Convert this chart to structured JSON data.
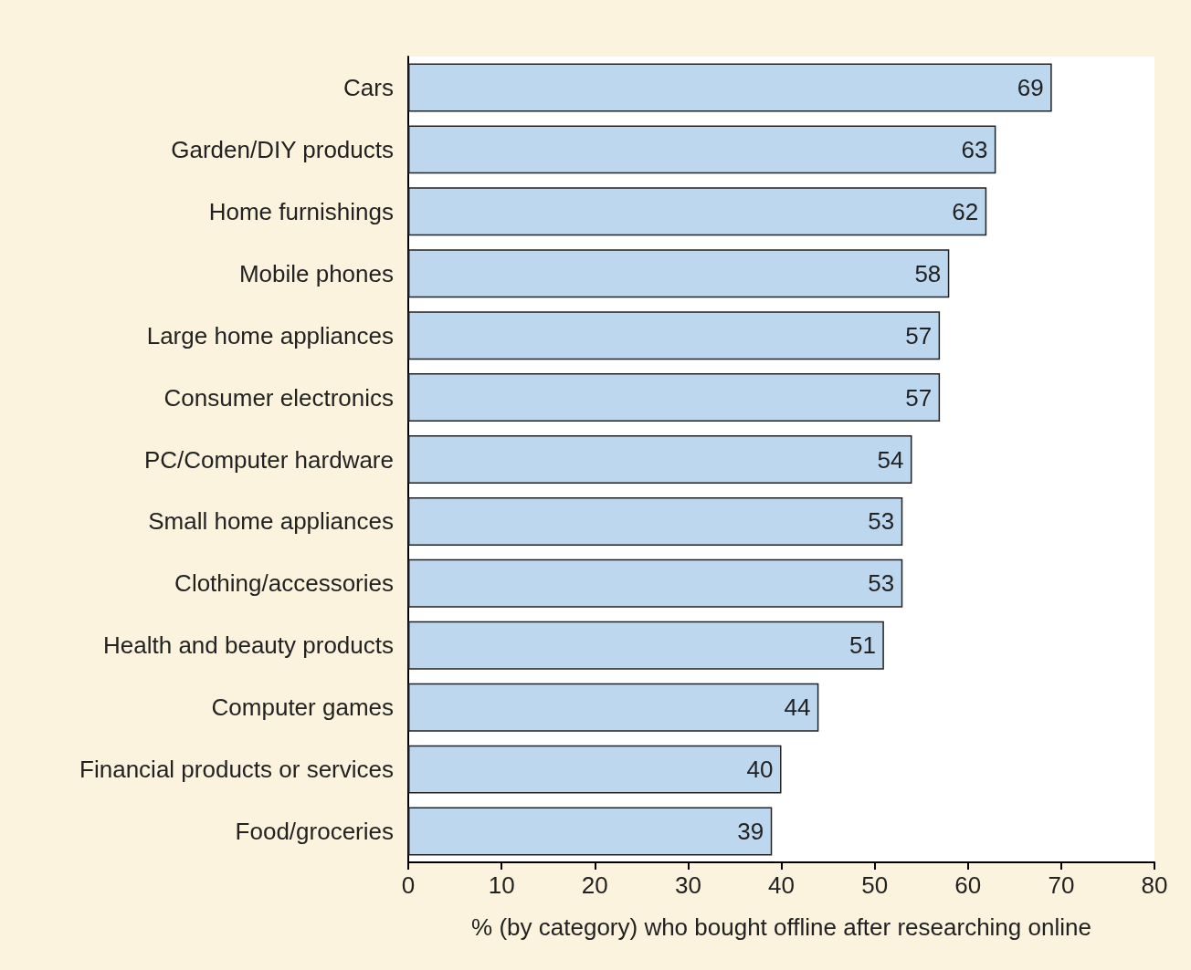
{
  "chart_data": {
    "type": "bar",
    "orientation": "horizontal",
    "xlabel": "% (by category) who bought offline after researching online",
    "categories": [
      "Cars",
      "Garden/DIY products",
      "Home furnishings",
      "Mobile phones",
      "Large home appliances",
      "Consumer electronics",
      "PC/Computer hardware",
      "Small home appliances",
      "Clothing/accessories",
      "Health and beauty products",
      "Computer games",
      "Financial products or services",
      "Food/groceries"
    ],
    "values": [
      69,
      63,
      62,
      58,
      57,
      57,
      54,
      53,
      53,
      51,
      44,
      40,
      39
    ],
    "color": "#bdd7ee",
    "xlim": [
      0,
      80
    ],
    "xticks": [
      0,
      10,
      20,
      30,
      40,
      50,
      60,
      70,
      80
    ],
    "grid": false,
    "data_labels": true
  }
}
